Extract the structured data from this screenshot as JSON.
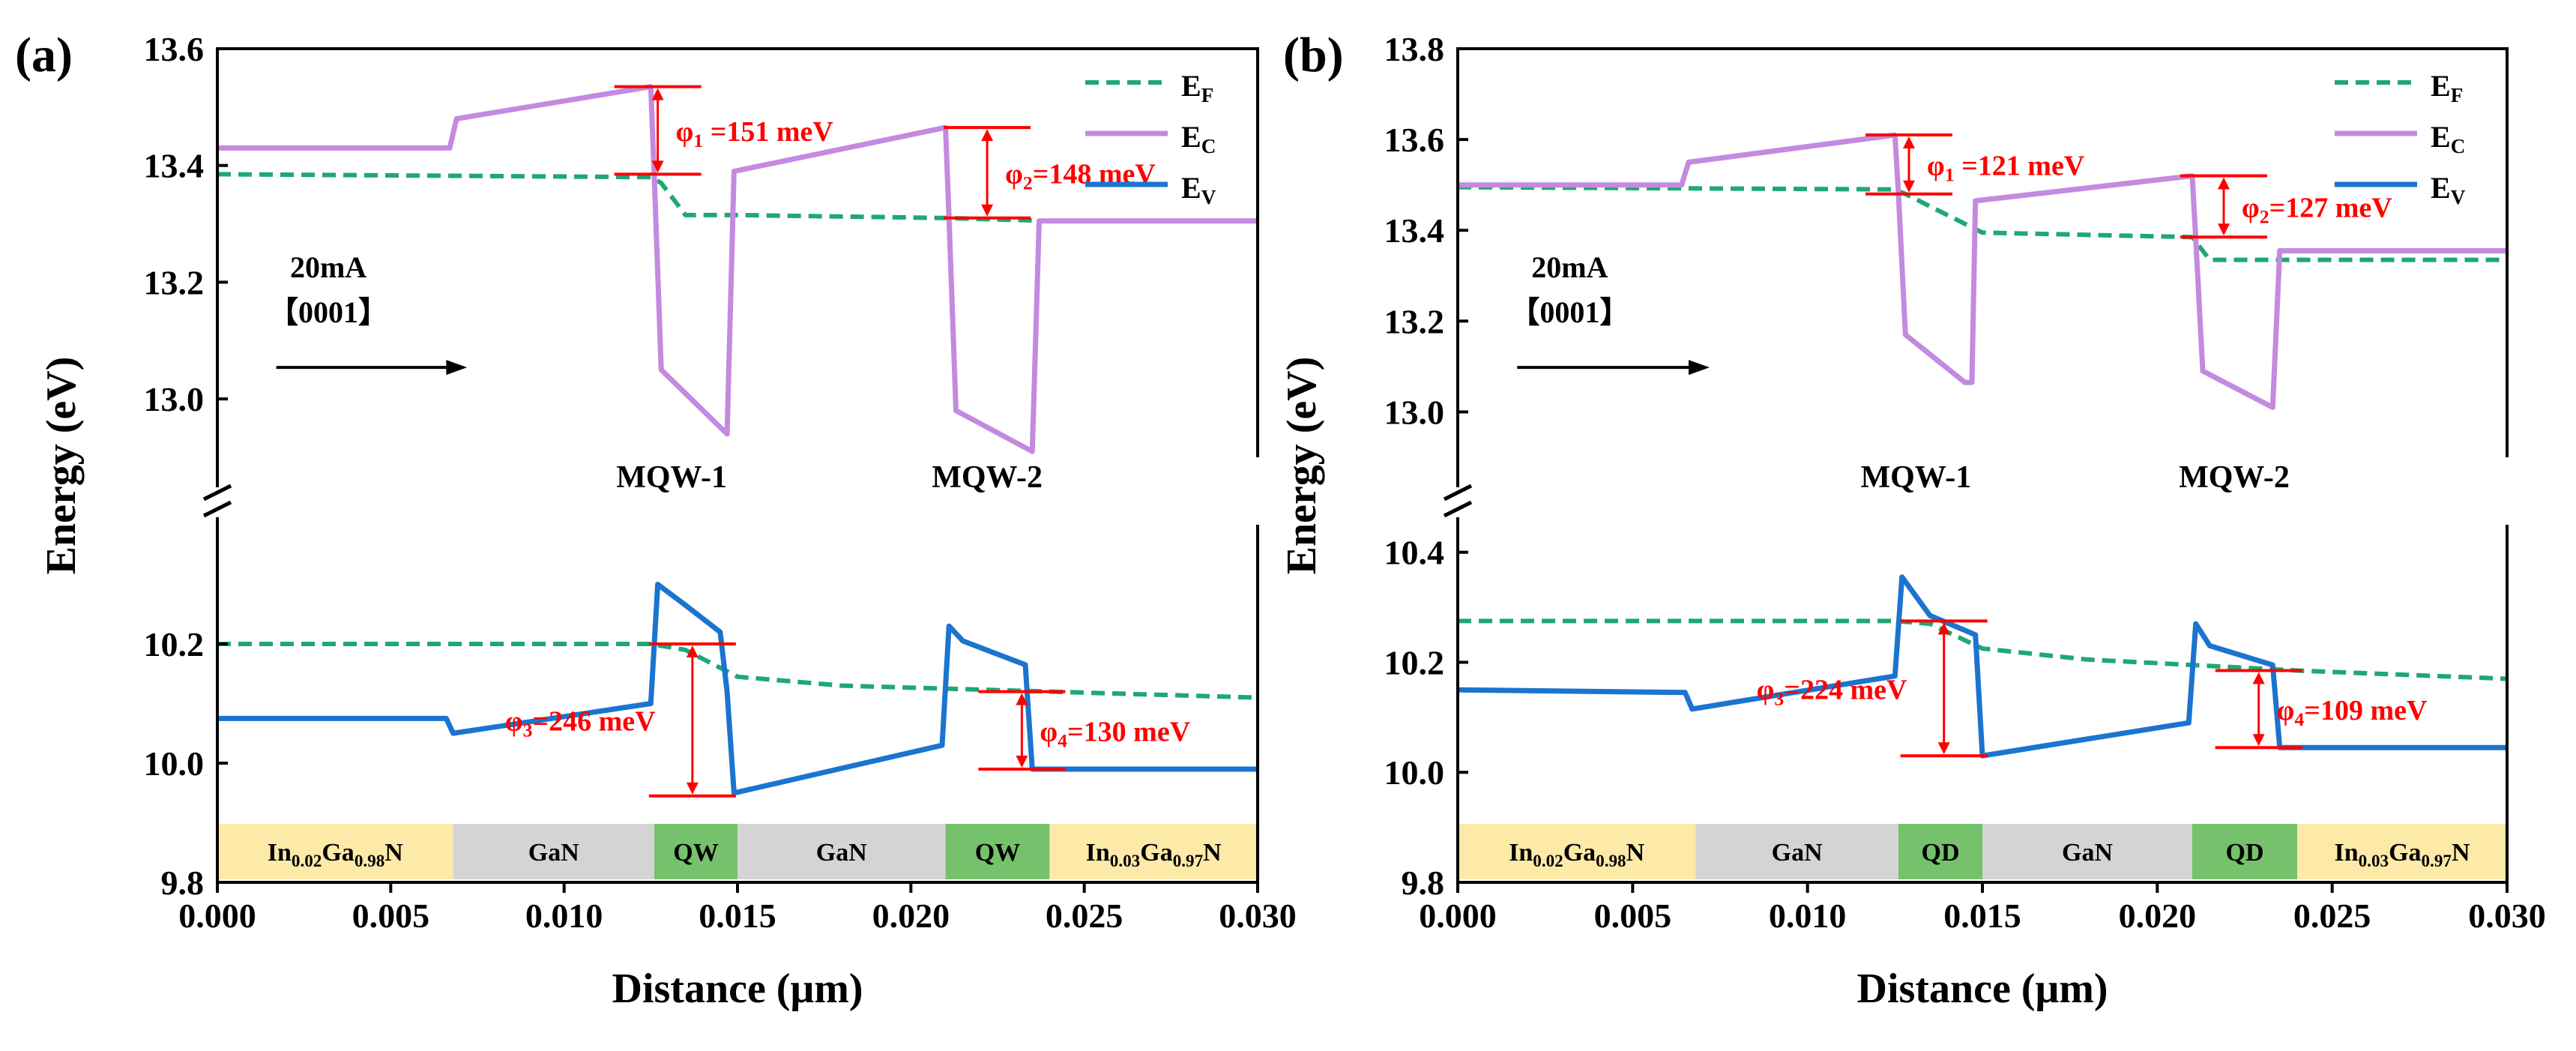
{
  "figure": {
    "xlabel": "Distance (μm)",
    "ylabel": "Energy (eV)"
  },
  "colors": {
    "EF": "#1fa872",
    "EC": "#c38ae0",
    "EV": "#1b74cf",
    "annotation": "#ff0000",
    "region_ingan": "#fde9a8",
    "region_gan": "#d4d4d4",
    "region_qw": "#76c26c"
  },
  "chart_data": [
    {
      "panel": "(a)",
      "type": "line",
      "xlim": [
        0.0,
        0.03
      ],
      "xticks": [
        "0.000",
        "0.005",
        "0.010",
        "0.015",
        "0.020",
        "0.025",
        "0.030"
      ],
      "upper_ylim": [
        12.9,
        13.6
      ],
      "upper_yticks": [
        "13.0",
        "13.2",
        "13.4",
        "13.6"
      ],
      "lower_ylim": [
        9.8,
        10.4
      ],
      "lower_yticks": [
        "9.8",
        "10.0",
        "10.2"
      ],
      "legend": [
        "EF",
        "EC",
        "EV"
      ],
      "current_label": "20mA",
      "direction_label": "【0001】",
      "qw_labels": [
        "MQW-1",
        "MQW-2"
      ],
      "series": [
        {
          "name": "EF",
          "part": "upper",
          "style": "dashed",
          "x": [
            0.0,
            0.0125,
            0.0128,
            0.0135,
            0.015,
            0.021,
            0.024,
            0.03
          ],
          "y": [
            13.385,
            13.38,
            13.37,
            13.315,
            13.315,
            13.31,
            13.305,
            13.305
          ]
        },
        {
          "name": "EC",
          "part": "upper",
          "style": "solid",
          "x": [
            0.0,
            0.0067,
            0.0069,
            0.0125,
            0.0126,
            0.0128,
            0.0147,
            0.0149,
            0.021,
            0.0211,
            0.0213,
            0.0235,
            0.0237,
            0.03
          ],
          "y": [
            13.43,
            13.43,
            13.48,
            13.535,
            13.38,
            13.05,
            12.94,
            13.39,
            13.465,
            13.31,
            12.98,
            12.91,
            13.305,
            13.305
          ]
        },
        {
          "name": "EF",
          "part": "lower",
          "style": "dashed",
          "x": [
            0.0,
            0.0125,
            0.0135,
            0.015,
            0.018,
            0.021,
            0.024,
            0.03
          ],
          "y": [
            10.2,
            10.2,
            10.19,
            10.145,
            10.13,
            10.125,
            10.12,
            10.11
          ]
        },
        {
          "name": "EV",
          "part": "lower",
          "style": "solid",
          "x": [
            0.0,
            0.0066,
            0.0068,
            0.0125,
            0.0127,
            0.0135,
            0.0145,
            0.0147,
            0.0149,
            0.0209,
            0.0211,
            0.0215,
            0.0233,
            0.0235,
            0.03
          ],
          "y": [
            10.075,
            10.075,
            10.05,
            10.1,
            10.3,
            10.265,
            10.22,
            10.12,
            9.95,
            10.03,
            10.23,
            10.205,
            10.165,
            9.99,
            9.99
          ]
        }
      ],
      "barriers": [
        {
          "label": "φ1 =151 meV",
          "x": 0.0127,
          "y_top": 13.535,
          "y_bottom": 13.385,
          "part": "upper"
        },
        {
          "label": "φ2=148 meV",
          "x": 0.0222,
          "y_top": 13.465,
          "y_bottom": 13.31,
          "part": "upper"
        },
        {
          "label": "φ3=246 meV",
          "x": 0.0137,
          "y_top": 10.2,
          "y_bottom": 9.945,
          "part": "lower"
        },
        {
          "label": "φ4=130 meV",
          "x": 0.0232,
          "y_top": 10.12,
          "y_bottom": 9.99,
          "part": "lower"
        }
      ],
      "regions": [
        {
          "label": "In0.02Ga0.98N",
          "sub": [
            "0.02",
            "0.98"
          ],
          "x0": 0.0,
          "x1": 0.0068,
          "kind": "ingan"
        },
        {
          "label": "GaN",
          "x0": 0.0068,
          "x1": 0.0126,
          "kind": "gan"
        },
        {
          "label": "QW",
          "x0": 0.0126,
          "x1": 0.015,
          "kind": "qw"
        },
        {
          "label": "GaN",
          "x0": 0.015,
          "x1": 0.021,
          "kind": "gan"
        },
        {
          "label": "QW",
          "x0": 0.021,
          "x1": 0.024,
          "kind": "qw"
        },
        {
          "label": "In0.03Ga0.97N",
          "sub": [
            "0.03",
            "0.97"
          ],
          "x0": 0.024,
          "x1": 0.03,
          "kind": "ingan"
        }
      ]
    },
    {
      "panel": "(b)",
      "type": "line",
      "xlim": [
        0.0,
        0.03
      ],
      "xticks": [
        "0.000",
        "0.005",
        "0.010",
        "0.015",
        "0.020",
        "0.025",
        "0.030"
      ],
      "upper_ylim": [
        12.9,
        13.8
      ],
      "upper_yticks": [
        "13.0",
        "13.2",
        "13.4",
        "13.6",
        "13.8"
      ],
      "lower_ylim": [
        9.8,
        10.45
      ],
      "lower_yticks": [
        "9.8",
        "10.0",
        "10.2",
        "10.4"
      ],
      "legend": [
        "EF",
        "EC",
        "EV"
      ],
      "current_label": "20mA",
      "direction_label": "【0001】",
      "qw_labels": [
        "MQW-1",
        "MQW-2"
      ],
      "series": [
        {
          "name": "EF",
          "part": "upper",
          "style": "dashed",
          "x": [
            0.0,
            0.0125,
            0.0128,
            0.015,
            0.021,
            0.0215,
            0.03
          ],
          "y": [
            13.495,
            13.49,
            13.48,
            13.395,
            13.385,
            13.335,
            13.335
          ]
        },
        {
          "name": "EC",
          "part": "upper",
          "style": "solid",
          "x": [
            0.0,
            0.0064,
            0.0066,
            0.0125,
            0.0126,
            0.0128,
            0.0145,
            0.0147,
            0.0148,
            0.021,
            0.0211,
            0.0213,
            0.0233,
            0.0235,
            0.03
          ],
          "y": [
            13.5,
            13.5,
            13.55,
            13.61,
            13.48,
            13.17,
            13.065,
            13.065,
            13.465,
            13.52,
            13.38,
            13.09,
            13.01,
            13.355,
            13.355
          ]
        },
        {
          "name": "EF",
          "part": "lower",
          "style": "dashed",
          "x": [
            0.0,
            0.0125,
            0.0135,
            0.015,
            0.018,
            0.021,
            0.024,
            0.03
          ],
          "y": [
            10.275,
            10.275,
            10.27,
            10.225,
            10.205,
            10.195,
            10.185,
            10.17
          ]
        },
        {
          "name": "EV",
          "part": "lower",
          "style": "solid",
          "x": [
            0.0,
            0.0065,
            0.0067,
            0.0125,
            0.0127,
            0.0135,
            0.0148,
            0.015,
            0.0209,
            0.0211,
            0.0215,
            0.0233,
            0.0235,
            0.03
          ],
          "y": [
            10.15,
            10.145,
            10.115,
            10.175,
            10.355,
            10.285,
            10.25,
            10.03,
            10.09,
            10.27,
            10.23,
            10.195,
            10.045,
            10.045
          ]
        }
      ],
      "barriers": [
        {
          "label": "φ1 =121 meV",
          "x": 0.0129,
          "y_top": 13.61,
          "y_bottom": 13.48,
          "part": "upper"
        },
        {
          "label": "φ2=127 meV",
          "x": 0.0219,
          "y_top": 13.52,
          "y_bottom": 13.385,
          "part": "upper"
        },
        {
          "label": "φ3=224 meV",
          "x": 0.0139,
          "y_top": 10.275,
          "y_bottom": 10.03,
          "part": "lower"
        },
        {
          "label": "φ4=109 meV",
          "x": 0.0229,
          "y_top": 10.185,
          "y_bottom": 10.045,
          "part": "lower"
        }
      ],
      "regions": [
        {
          "label": "In0.02Ga0.98N",
          "sub": [
            "0.02",
            "0.98"
          ],
          "x0": 0.0,
          "x1": 0.0068,
          "kind": "ingan"
        },
        {
          "label": "GaN",
          "x0": 0.0068,
          "x1": 0.0126,
          "kind": "gan"
        },
        {
          "label": "QD",
          "x0": 0.0126,
          "x1": 0.015,
          "kind": "qw"
        },
        {
          "label": "GaN",
          "x0": 0.015,
          "x1": 0.021,
          "kind": "gan"
        },
        {
          "label": "QD",
          "x0": 0.021,
          "x1": 0.024,
          "kind": "qw"
        },
        {
          "label": "In0.03Ga0.97N",
          "sub": [
            "0.03",
            "0.97"
          ],
          "x0": 0.024,
          "x1": 0.03,
          "kind": "ingan"
        }
      ]
    }
  ]
}
